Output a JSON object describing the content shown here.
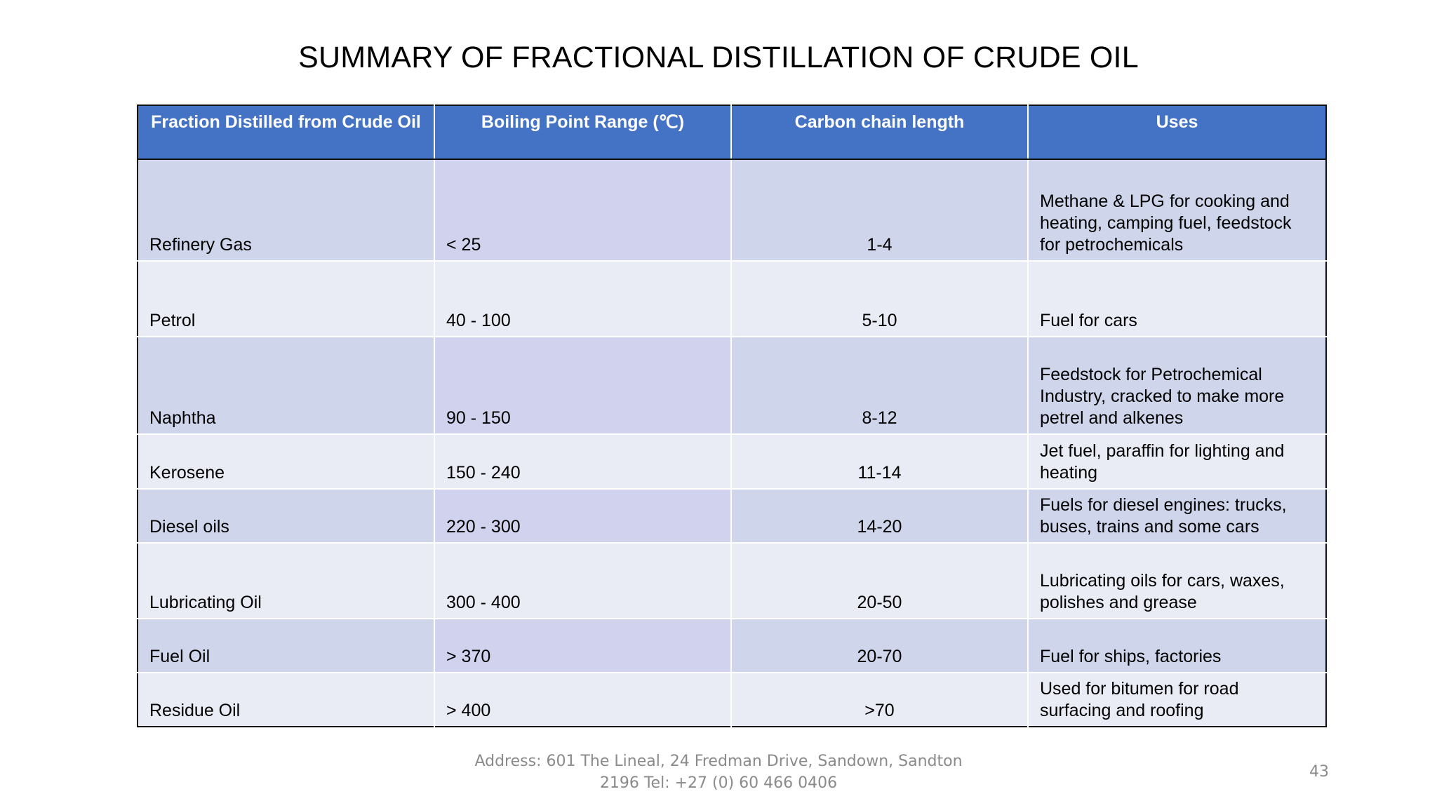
{
  "slide": {
    "title": "SUMMARY OF FRACTIONAL DISTILLATION OF CRUDE OIL",
    "page_number": "43",
    "footer_line1": "Address: 601 The Lineal, 24 Fredman Drive, Sandown, Sandton",
    "footer_line2": "2196 Tel: +27 (0) 60 466 0406"
  },
  "table": {
    "headers": [
      "Fraction Distilled from Crude Oil",
      "Boiling Point Range (℃)",
      "Carbon chain length",
      "Uses"
    ],
    "rows": [
      {
        "fraction": "Refinery Gas",
        "boiling": "< 25",
        "carbon": "1-4",
        "uses": "Methane & LPG for cooking and heating, camping fuel, feedstock for petrochemicals"
      },
      {
        "fraction": "Petrol",
        "boiling": "40 - 100",
        "carbon": "5-10",
        "uses": "Fuel for cars"
      },
      {
        "fraction": "Naphtha",
        "boiling": "90 - 150",
        "carbon": "8-12",
        "uses": "Feedstock for Petrochemical Industry, cracked to make more petrel and alkenes"
      },
      {
        "fraction": "Kerosene",
        "boiling": "150 - 240",
        "carbon": "11-14",
        "uses": "Jet fuel, paraffin for lighting and heating"
      },
      {
        "fraction": "Diesel oils",
        "boiling": "220 - 300",
        "carbon": "14-20",
        "uses": "Fuels for diesel engines: trucks, buses, trains and some cars"
      },
      {
        "fraction": "Lubricating Oil",
        "boiling": "300 - 400",
        "carbon": "20-50",
        "uses": "Lubricating oils for cars, waxes, polishes and grease"
      },
      {
        "fraction": "Fuel Oil",
        "boiling": "> 370",
        "carbon": "20-70",
        "uses": "Fuel for ships, factories"
      },
      {
        "fraction": "Residue Oil",
        "boiling": "> 400",
        "carbon": ">70",
        "uses": "Used for bitumen for road surfacing and roofing"
      }
    ]
  }
}
